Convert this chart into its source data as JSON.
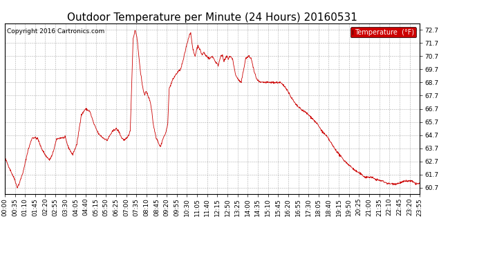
{
  "title": "Outdoor Temperature per Minute (24 Hours) 20160531",
  "copyright_text": "Copyright 2016 Cartronics.com",
  "legend_label": "Temperature  (°F)",
  "legend_bg": "#cc0000",
  "legend_text_color": "#ffffff",
  "line_color": "#cc0000",
  "background_color": "#ffffff",
  "grid_color": "#999999",
  "ylim": [
    60.2,
    73.2
  ],
  "yticks": [
    60.7,
    61.7,
    62.7,
    63.7,
    64.7,
    65.7,
    66.7,
    67.7,
    68.7,
    69.7,
    70.7,
    71.7,
    72.7
  ],
  "xtick_labels": [
    "00:00",
    "00:35",
    "01:10",
    "01:45",
    "02:20",
    "02:55",
    "03:30",
    "04:05",
    "04:40",
    "05:15",
    "05:50",
    "06:25",
    "07:00",
    "07:35",
    "08:10",
    "08:45",
    "09:20",
    "09:55",
    "10:30",
    "11:05",
    "11:40",
    "12:15",
    "12:50",
    "13:25",
    "14:00",
    "14:35",
    "15:10",
    "15:45",
    "16:20",
    "16:55",
    "17:30",
    "18:05",
    "18:40",
    "19:15",
    "19:50",
    "20:25",
    "21:00",
    "21:35",
    "22:10",
    "22:45",
    "23:20",
    "23:55"
  ],
  "title_fontsize": 11,
  "axis_fontsize": 6.5,
  "copyright_fontsize": 6.5,
  "control_points": [
    [
      0,
      63.0
    ],
    [
      10,
      62.5
    ],
    [
      20,
      62.0
    ],
    [
      35,
      61.3
    ],
    [
      43,
      60.7
    ],
    [
      50,
      61.0
    ],
    [
      65,
      62.0
    ],
    [
      80,
      63.5
    ],
    [
      95,
      64.5
    ],
    [
      105,
      64.5
    ],
    [
      115,
      64.4
    ],
    [
      125,
      63.8
    ],
    [
      140,
      63.2
    ],
    [
      155,
      62.8
    ],
    [
      165,
      63.2
    ],
    [
      180,
      64.4
    ],
    [
      195,
      64.5
    ],
    [
      210,
      64.5
    ],
    [
      220,
      63.8
    ],
    [
      235,
      63.2
    ],
    [
      250,
      64.0
    ],
    [
      265,
      66.2
    ],
    [
      280,
      66.7
    ],
    [
      295,
      66.5
    ],
    [
      310,
      65.5
    ],
    [
      325,
      64.8
    ],
    [
      340,
      64.5
    ],
    [
      355,
      64.3
    ],
    [
      365,
      64.7
    ],
    [
      375,
      65.0
    ],
    [
      385,
      65.2
    ],
    [
      395,
      65.0
    ],
    [
      405,
      64.5
    ],
    [
      415,
      64.3
    ],
    [
      425,
      64.5
    ],
    [
      435,
      65.0
    ],
    [
      445,
      72.0
    ],
    [
      452,
      72.7
    ],
    [
      458,
      72.2
    ],
    [
      468,
      70.0
    ],
    [
      478,
      68.3
    ],
    [
      485,
      67.8
    ],
    [
      490,
      68.0
    ],
    [
      495,
      67.8
    ],
    [
      500,
      67.5
    ],
    [
      505,
      67.2
    ],
    [
      510,
      66.5
    ],
    [
      515,
      65.5
    ],
    [
      520,
      65.0
    ],
    [
      525,
      64.5
    ],
    [
      530,
      64.3
    ],
    [
      535,
      64.0
    ],
    [
      540,
      63.8
    ],
    [
      545,
      64.2
    ],
    [
      550,
      64.5
    ],
    [
      555,
      64.7
    ],
    [
      560,
      65.0
    ],
    [
      565,
      65.5
    ],
    [
      570,
      68.2
    ],
    [
      575,
      68.5
    ],
    [
      580,
      68.8
    ],
    [
      590,
      69.2
    ],
    [
      600,
      69.5
    ],
    [
      610,
      69.7
    ],
    [
      620,
      70.5
    ],
    [
      630,
      71.5
    ],
    [
      640,
      72.3
    ],
    [
      645,
      72.5
    ],
    [
      650,
      71.5
    ],
    [
      655,
      71.0
    ],
    [
      660,
      70.7
    ],
    [
      665,
      71.2
    ],
    [
      670,
      71.5
    ],
    [
      675,
      71.3
    ],
    [
      680,
      71.0
    ],
    [
      685,
      70.8
    ],
    [
      690,
      71.0
    ],
    [
      695,
      70.8
    ],
    [
      700,
      70.7
    ],
    [
      710,
      70.5
    ],
    [
      720,
      70.7
    ],
    [
      730,
      70.3
    ],
    [
      740,
      70.0
    ],
    [
      750,
      70.8
    ],
    [
      755,
      70.7
    ],
    [
      760,
      70.3
    ],
    [
      770,
      70.7
    ],
    [
      775,
      70.5
    ],
    [
      780,
      70.7
    ],
    [
      790,
      70.5
    ],
    [
      800,
      69.3
    ],
    [
      810,
      68.9
    ],
    [
      820,
      68.7
    ],
    [
      825,
      69.3
    ],
    [
      835,
      70.5
    ],
    [
      845,
      70.7
    ],
    [
      855,
      70.5
    ],
    [
      865,
      69.5
    ],
    [
      875,
      68.9
    ],
    [
      885,
      68.7
    ],
    [
      895,
      68.7
    ],
    [
      910,
      68.7
    ],
    [
      925,
      68.7
    ],
    [
      940,
      68.7
    ],
    [
      955,
      68.7
    ],
    [
      965,
      68.5
    ],
    [
      975,
      68.3
    ],
    [
      985,
      67.9
    ],
    [
      995,
      67.5
    ],
    [
      1010,
      67.0
    ],
    [
      1025,
      66.7
    ],
    [
      1045,
      66.4
    ],
    [
      1065,
      66.0
    ],
    [
      1085,
      65.5
    ],
    [
      1100,
      65.0
    ],
    [
      1120,
      64.5
    ],
    [
      1140,
      63.8
    ],
    [
      1160,
      63.2
    ],
    [
      1180,
      62.7
    ],
    [
      1200,
      62.3
    ],
    [
      1215,
      62.0
    ],
    [
      1230,
      61.8
    ],
    [
      1250,
      61.5
    ],
    [
      1270,
      61.5
    ],
    [
      1290,
      61.3
    ],
    [
      1310,
      61.2
    ],
    [
      1330,
      61.0
    ],
    [
      1360,
      61.0
    ],
    [
      1390,
      61.2
    ],
    [
      1410,
      61.2
    ],
    [
      1425,
      61.0
    ],
    [
      1439,
      61.0
    ]
  ]
}
